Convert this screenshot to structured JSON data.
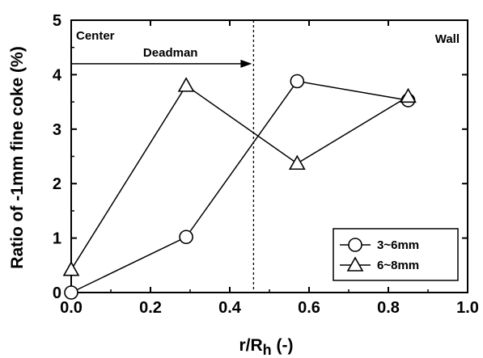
{
  "chart_data": {
    "type": "line",
    "xlabel": "r/R",
    "xlabel_sub": "h",
    "xlabel_tail": " (-)",
    "ylabel": "Ratio of -1mm fine coke (%)",
    "xlim": [
      0.0,
      1.0
    ],
    "ylim": [
      0,
      5
    ],
    "x_ticks": [
      "0.0",
      "0.2",
      "0.4",
      "0.6",
      "0.8",
      "1.0"
    ],
    "y_ticks": [
      "0",
      "1",
      "2",
      "3",
      "4",
      "5"
    ],
    "grid": false,
    "legend_position": "bottom-right",
    "series": [
      {
        "name": "3~6mm",
        "marker": "circle",
        "x": [
          0.0,
          0.29,
          0.57,
          0.85
        ],
        "y": [
          0.0,
          1.02,
          3.88,
          3.53
        ]
      },
      {
        "name": "6~8mm",
        "marker": "triangle",
        "x": [
          0.0,
          0.29,
          0.57,
          0.85
        ],
        "y": [
          0.42,
          3.8,
          2.37,
          3.6
        ]
      }
    ],
    "annotations": {
      "center_label": "Center",
      "wall_label": "Wall",
      "deadman_label": "Deadman",
      "deadman_boundary_x": 0.46,
      "deadman_arrow_y": 4.2
    }
  }
}
